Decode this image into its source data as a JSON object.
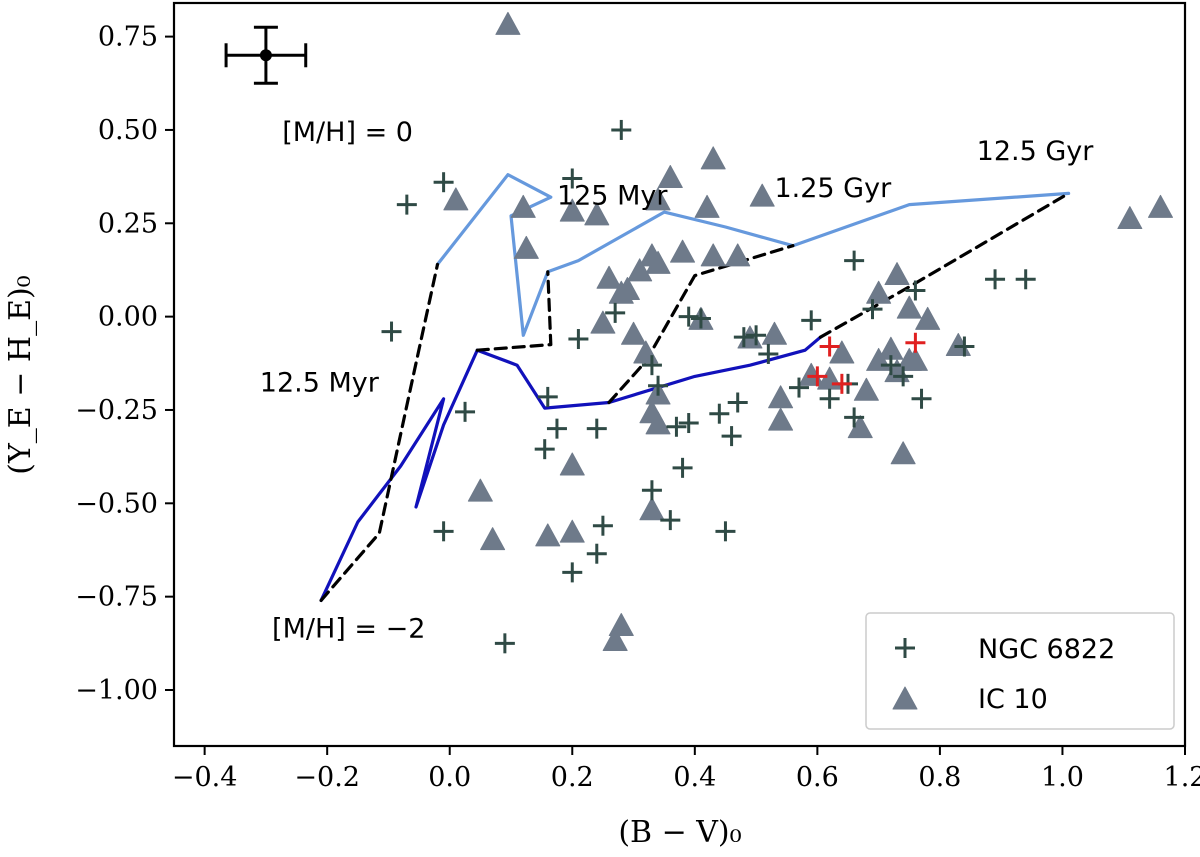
{
  "chart_data": {
    "type": "scatter",
    "xlabel": "(B − V)₀",
    "ylabel": "(Y_E − H_E)₀",
    "xlim": [
      -0.45,
      1.2
    ],
    "ylim": [
      -1.15,
      0.84
    ],
    "xticks": [
      -0.4,
      -0.2,
      0.0,
      0.2,
      0.4,
      0.6,
      0.8,
      1.0,
      1.2
    ],
    "xtick_labels": [
      "−0.4",
      "−0.2",
      "0.0",
      "0.2",
      "0.4",
      "0.6",
      "0.8",
      "1.0",
      "1.2"
    ],
    "yticks": [
      -1.0,
      -0.75,
      -0.5,
      -0.25,
      0.0,
      0.25,
      0.5,
      0.75
    ],
    "ytick_labels": [
      "−1.00",
      "−0.75",
      "−0.50",
      "−0.25",
      "0.00",
      "0.25",
      "0.50",
      "0.75"
    ],
    "grid": false,
    "legend_position": "bottom-right",
    "colors": {
      "ngc": "#2f4a45",
      "ic10": "#6e7a8a",
      "highlight": "#e02020",
      "track_solar": "#6699dd",
      "track_metal_poor": "#1111bb",
      "isochrone": "#000000"
    },
    "series": [
      {
        "name": "NGC 6822",
        "marker": "plus",
        "points": [
          [
            -0.07,
            0.3
          ],
          [
            -0.01,
            0.36
          ],
          [
            -0.095,
            -0.04
          ],
          [
            0.025,
            -0.255
          ],
          [
            -0.01,
            -0.575
          ],
          [
            0.09,
            -0.875
          ],
          [
            0.28,
            0.5
          ],
          [
            0.2,
            0.37
          ],
          [
            0.16,
            -0.215
          ],
          [
            0.175,
            -0.3
          ],
          [
            0.155,
            -0.355
          ],
          [
            0.24,
            -0.3
          ],
          [
            0.21,
            -0.06
          ],
          [
            0.27,
            0.01
          ],
          [
            0.2,
            -0.685
          ],
          [
            0.24,
            -0.635
          ],
          [
            0.25,
            -0.56
          ],
          [
            0.33,
            -0.465
          ],
          [
            0.36,
            -0.545
          ],
          [
            0.45,
            -0.575
          ],
          [
            0.33,
            -0.13
          ],
          [
            0.34,
            -0.185
          ],
          [
            0.37,
            -0.295
          ],
          [
            0.38,
            -0.405
          ],
          [
            0.39,
            -0.285
          ],
          [
            0.44,
            -0.26
          ],
          [
            0.46,
            -0.32
          ],
          [
            0.47,
            -0.23
          ],
          [
            0.39,
            0.0
          ],
          [
            0.41,
            -0.005
          ],
          [
            0.5,
            -0.05
          ],
          [
            0.48,
            -0.055
          ],
          [
            0.52,
            -0.1
          ],
          [
            0.59,
            -0.01
          ],
          [
            0.57,
            -0.19
          ],
          [
            0.62,
            -0.22
          ],
          [
            0.66,
            0.15
          ],
          [
            0.69,
            0.02
          ],
          [
            0.65,
            -0.18
          ],
          [
            0.66,
            -0.27
          ],
          [
            0.72,
            -0.13
          ],
          [
            0.74,
            -0.16
          ],
          [
            0.76,
            0.07
          ],
          [
            0.77,
            -0.22
          ],
          [
            0.84,
            -0.08
          ],
          [
            0.89,
            0.1
          ],
          [
            0.94,
            0.1
          ]
        ]
      },
      {
        "name": "IC 10",
        "marker": "triangle",
        "points": [
          [
            0.095,
            0.78
          ],
          [
            0.01,
            0.31
          ],
          [
            0.12,
            0.29
          ],
          [
            0.125,
            0.18
          ],
          [
            0.2,
            0.28
          ],
          [
            0.24,
            0.27
          ],
          [
            0.36,
            0.37
          ],
          [
            0.43,
            0.42
          ],
          [
            0.42,
            0.29
          ],
          [
            0.51,
            0.32
          ],
          [
            0.34,
            0.31
          ],
          [
            0.33,
            0.16
          ],
          [
            0.34,
            0.14
          ],
          [
            0.38,
            0.17
          ],
          [
            0.43,
            0.16
          ],
          [
            0.47,
            0.16
          ],
          [
            0.26,
            0.1
          ],
          [
            0.29,
            0.07
          ],
          [
            0.31,
            0.12
          ],
          [
            0.41,
            -0.01
          ],
          [
            0.28,
            0.06
          ],
          [
            0.25,
            -0.02
          ],
          [
            0.3,
            -0.05
          ],
          [
            0.32,
            -0.1
          ],
          [
            0.34,
            -0.21
          ],
          [
            0.33,
            -0.26
          ],
          [
            0.34,
            -0.29
          ],
          [
            0.49,
            -0.06
          ],
          [
            0.53,
            -0.05
          ],
          [
            0.54,
            -0.22
          ],
          [
            0.54,
            -0.28
          ],
          [
            0.59,
            -0.16
          ],
          [
            0.64,
            -0.1
          ],
          [
            0.67,
            -0.3
          ],
          [
            0.68,
            -0.2
          ],
          [
            0.7,
            0.06
          ],
          [
            0.7,
            -0.12
          ],
          [
            0.72,
            -0.09
          ],
          [
            0.73,
            -0.15
          ],
          [
            0.75,
            0.02
          ],
          [
            0.75,
            -0.12
          ],
          [
            0.78,
            -0.01
          ],
          [
            0.73,
            0.11
          ],
          [
            0.76,
            -0.12
          ],
          [
            0.74,
            -0.37
          ],
          [
            0.2,
            -0.4
          ],
          [
            0.05,
            -0.47
          ],
          [
            0.07,
            -0.6
          ],
          [
            0.16,
            -0.59
          ],
          [
            0.2,
            -0.58
          ],
          [
            0.33,
            -0.52
          ],
          [
            0.28,
            -0.83
          ],
          [
            0.27,
            -0.87
          ],
          [
            1.11,
            0.26
          ],
          [
            1.16,
            0.29
          ],
          [
            0.83,
            -0.08
          ],
          [
            0.62,
            -0.17
          ]
        ]
      },
      {
        "name": "",
        "marker": "plus-red",
        "points": [
          [
            0.6,
            -0.16
          ],
          [
            0.62,
            -0.08
          ],
          [
            0.64,
            -0.18
          ],
          [
            0.76,
            -0.07
          ]
        ]
      }
    ],
    "lines": [
      {
        "style": "solid",
        "color_key": "track_solar",
        "points": [
          [
            -0.02,
            0.14
          ],
          [
            0.095,
            0.38
          ],
          [
            0.165,
            0.32
          ],
          [
            0.1,
            0.27
          ],
          [
            0.12,
            -0.05
          ],
          [
            0.16,
            0.12
          ],
          [
            0.21,
            0.15
          ],
          [
            0.35,
            0.28
          ],
          [
            0.45,
            0.24
          ],
          [
            0.56,
            0.19
          ],
          [
            0.75,
            0.3
          ],
          [
            1.01,
            0.33
          ]
        ]
      },
      {
        "style": "solid",
        "color_key": "track_metal_poor",
        "points": [
          [
            -0.21,
            -0.76
          ],
          [
            -0.15,
            -0.55
          ],
          [
            -0.08,
            -0.4
          ],
          [
            -0.01,
            -0.22
          ],
          [
            -0.055,
            -0.51
          ],
          [
            -0.01,
            -0.29
          ],
          [
            0.045,
            -0.09
          ],
          [
            0.11,
            -0.13
          ],
          [
            0.155,
            -0.245
          ],
          [
            0.26,
            -0.23
          ],
          [
            0.4,
            -0.16
          ],
          [
            0.49,
            -0.13
          ],
          [
            0.58,
            -0.09
          ],
          [
            0.605,
            -0.055
          ]
        ]
      },
      {
        "style": "dashed",
        "color_key": "isochrone",
        "points": [
          [
            -0.21,
            -0.76
          ],
          [
            -0.115,
            -0.58
          ],
          [
            -0.065,
            -0.2
          ],
          [
            -0.02,
            0.14
          ]
        ]
      },
      {
        "style": "dashed",
        "color_key": "isochrone",
        "points": [
          [
            0.045,
            -0.09
          ],
          [
            0.165,
            -0.075
          ],
          [
            0.16,
            0.12
          ]
        ]
      },
      {
        "style": "dashed",
        "color_key": "isochrone",
        "points": [
          [
            0.26,
            -0.23
          ],
          [
            0.32,
            -0.12
          ],
          [
            0.4,
            0.11
          ],
          [
            0.56,
            0.19
          ]
        ]
      },
      {
        "style": "dashed",
        "color_key": "isochrone",
        "points": [
          [
            0.605,
            -0.055
          ],
          [
            0.75,
            0.08
          ],
          [
            1.01,
            0.33
          ]
        ]
      }
    ],
    "errorbar": {
      "x": -0.3,
      "y": 0.7,
      "xerr": 0.065,
      "yerr": 0.075
    },
    "annotations": [
      {
        "text": "[M/H] = 0",
        "x": -0.06,
        "y": 0.47,
        "anchor": "end"
      },
      {
        "text": "125 Myr",
        "x": 0.175,
        "y": 0.3,
        "anchor": "start"
      },
      {
        "text": "1.25 Gyr",
        "x": 0.53,
        "y": 0.32,
        "anchor": "start"
      },
      {
        "text": "12.5 Gyr",
        "x": 0.86,
        "y": 0.42,
        "anchor": "start"
      },
      {
        "text": "12.5 Myr",
        "x": -0.31,
        "y": -0.2,
        "anchor": "start"
      },
      {
        "text": "[M/H] = −2",
        "x": -0.29,
        "y": -0.86,
        "anchor": "start"
      }
    ],
    "legend": [
      {
        "label": "NGC 6822",
        "marker": "plus"
      },
      {
        "label": "IC 10",
        "marker": "triangle"
      }
    ]
  }
}
